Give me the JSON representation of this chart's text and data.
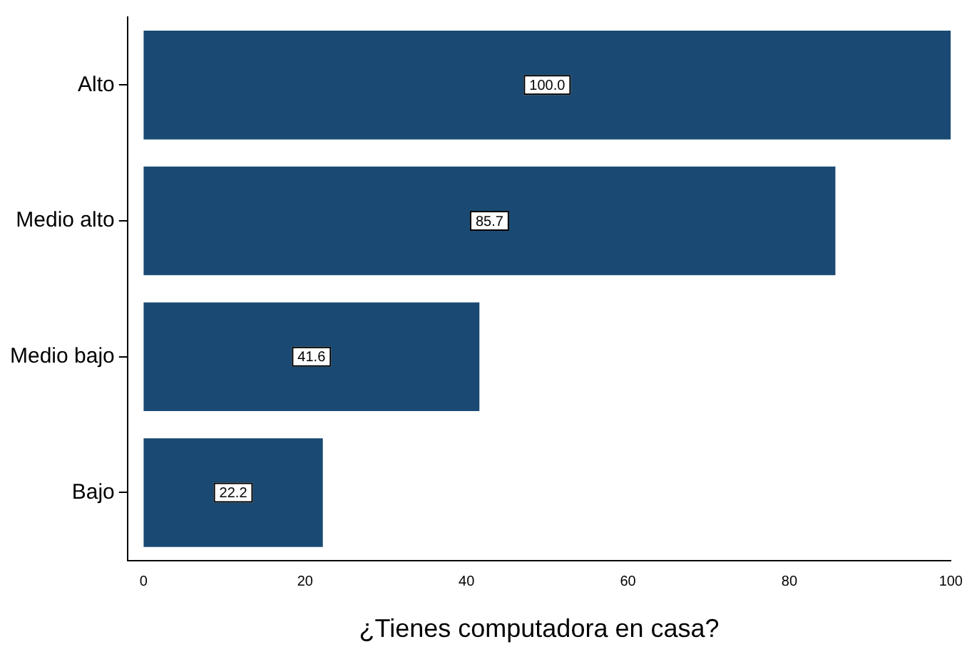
{
  "chart_data": {
    "type": "bar",
    "orientation": "horizontal",
    "xlabel": "¿Tienes computadora en casa?",
    "categories": [
      "Alto",
      "Medio alto",
      "Medio bajo",
      "Bajo"
    ],
    "values": [
      100.0,
      85.7,
      41.6,
      22.2
    ],
    "color": "#1a4a73",
    "value_labels": [
      "100.0",
      "85.7",
      "41.6",
      "22.2"
    ],
    "xlim": [
      -2,
      100
    ],
    "xticks": [
      0,
      20,
      40,
      60,
      80,
      100
    ],
    "grid": false,
    "legend": false
  }
}
